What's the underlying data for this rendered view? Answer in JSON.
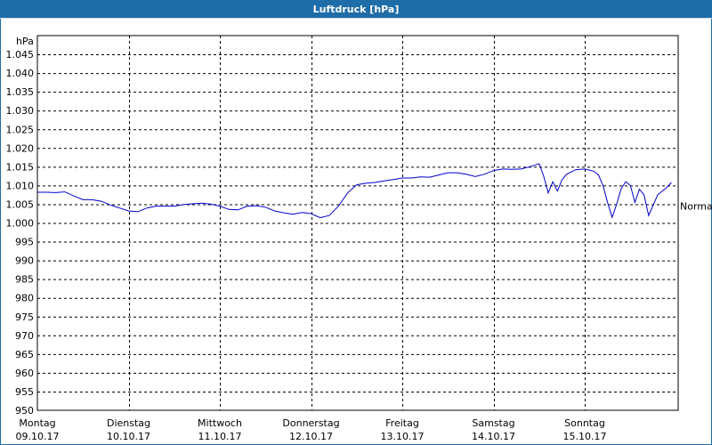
{
  "window": {
    "title": "Luftdruck [hPa]"
  },
  "colors": {
    "title_bar": "#1f6da8",
    "series_line": "#0000cc",
    "grid": "#000000"
  },
  "chart_data": {
    "type": "line",
    "title": "Luftdruck [hPa]",
    "ylabel": "hPa",
    "xlabel": "",
    "ylim": [
      950,
      1050
    ],
    "y_ticks": [
      950,
      955,
      960,
      965,
      970,
      975,
      980,
      985,
      990,
      995,
      1000,
      1005,
      1010,
      1015,
      1020,
      1025,
      1030,
      1035,
      1040,
      1045
    ],
    "y_tick_labels": [
      "950",
      "955",
      "960",
      "965",
      "970",
      "975",
      "980",
      "985",
      "990",
      "995",
      "1.000",
      "1.005",
      "1.010",
      "1.015",
      "1.020",
      "1.025",
      "1.030",
      "1.035",
      "1.040",
      "1.045"
    ],
    "xlim": [
      0,
      7
    ],
    "x_ticks": [
      {
        "x": 0,
        "day": "Montag",
        "date": "09.10.17"
      },
      {
        "x": 1,
        "day": "Dienstag",
        "date": "10.10.17"
      },
      {
        "x": 2,
        "day": "Mittwoch",
        "date": "11.10.17"
      },
      {
        "x": 3,
        "day": "Donnerstag",
        "date": "12.10.17"
      },
      {
        "x": 4,
        "day": "Freitag",
        "date": "13.10.17"
      },
      {
        "x": 5,
        "day": "Samstag",
        "date": "14.10.17"
      },
      {
        "x": 6,
        "day": "Sonntag",
        "date": "15.10.17"
      }
    ],
    "grid": true,
    "reference_line": {
      "label": "Normal",
      "value": 1004.5
    },
    "series": [
      {
        "x": [
          0.0,
          0.1,
          0.2,
          0.3,
          0.4,
          0.5,
          0.6,
          0.7,
          0.8,
          0.9,
          1.0,
          1.1,
          1.2,
          1.3,
          1.4,
          1.5,
          1.6,
          1.7,
          1.8,
          1.9,
          2.0,
          2.1,
          2.2,
          2.3,
          2.4,
          2.5,
          2.6,
          2.7,
          2.8,
          2.9,
          3.0,
          3.1,
          3.2,
          3.3,
          3.4,
          3.5,
          3.6,
          3.7,
          3.8,
          3.9,
          4.0,
          4.1,
          4.2,
          4.3,
          4.4,
          4.5,
          4.6,
          4.7,
          4.8,
          4.9,
          5.0,
          5.1,
          5.2,
          5.3,
          5.4,
          5.5,
          5.55,
          5.6,
          5.65,
          5.7,
          5.75,
          5.8,
          5.9,
          6.0,
          6.1,
          6.15,
          6.2,
          6.25,
          6.3,
          6.35,
          6.4,
          6.45,
          6.5,
          6.55,
          6.6,
          6.65,
          6.7,
          6.8,
          6.9,
          6.95
        ],
        "values": [
          1008.2,
          1008.2,
          1008.1,
          1008.3,
          1007.2,
          1006.2,
          1006.2,
          1005.8,
          1004.8,
          1004.0,
          1003.2,
          1003.0,
          1004.0,
          1004.5,
          1004.5,
          1004.5,
          1004.9,
          1005.1,
          1005.3,
          1005.0,
          1004.5,
          1003.6,
          1003.5,
          1004.5,
          1004.6,
          1004.2,
          1003.2,
          1002.7,
          1002.3,
          1002.8,
          1002.5,
          1001.4,
          1002.0,
          1004.5,
          1008.0,
          1010.2,
          1010.6,
          1010.8,
          1011.2,
          1011.6,
          1012.0,
          1012.0,
          1012.3,
          1012.2,
          1012.8,
          1013.4,
          1013.4,
          1013.0,
          1012.4,
          1013.0,
          1014.0,
          1014.4,
          1014.3,
          1014.4,
          1015.0,
          1015.8,
          1012.5,
          1008.0,
          1011.0,
          1008.5,
          1011.5,
          1013.0,
          1014.2,
          1014.4,
          1013.8,
          1012.8,
          1010.0,
          1005.5,
          1001.5,
          1005.0,
          1009.2,
          1011.0,
          1010.0,
          1005.5,
          1009.0,
          1007.5,
          1002.0,
          1007.5,
          1009.5,
          1010.8
        ]
      }
    ]
  }
}
